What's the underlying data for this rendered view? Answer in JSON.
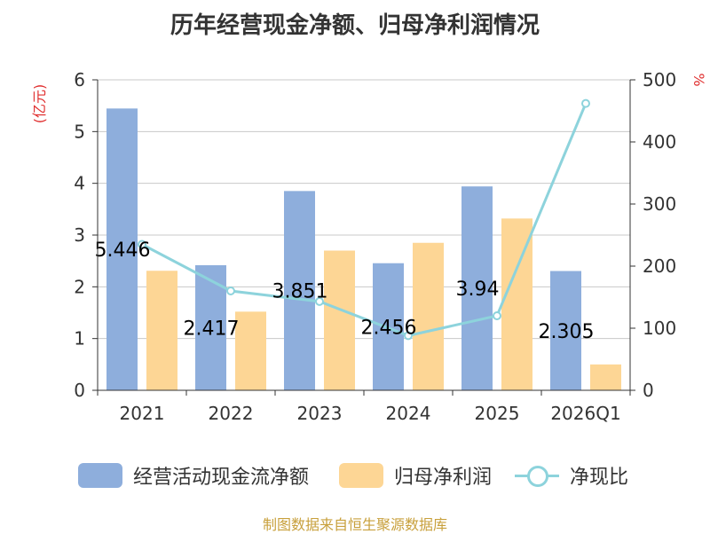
{
  "title": "历年经营现金净额、归母净利润情况",
  "source": "制图数据来自恒生聚源数据库",
  "colors": {
    "cash_flow": "#8eaedc",
    "net_profit": "#fdd695",
    "ratio": "#8dd3dc",
    "axis_title": "#e03030",
    "grid": "#c8c8c8",
    "text": "#333333"
  },
  "chart_data": {
    "type": "bar",
    "title": "历年经营现金净额、归母净利润情况",
    "categories": [
      "2021",
      "2022",
      "2023",
      "2024",
      "2025",
      "2026Q1"
    ],
    "y_left": {
      "label": "(亿元)",
      "min": 0,
      "max": 6,
      "ticks": [
        "0",
        "1",
        "2",
        "3",
        "4",
        "5",
        "6"
      ]
    },
    "y_right": {
      "label": "%",
      "min": 0,
      "max": 500,
      "ticks": [
        "0",
        "100",
        "200",
        "300",
        "400",
        "500"
      ]
    },
    "series": [
      {
        "name": "经营活动现金流净额",
        "type": "bar",
        "axis": "left",
        "values": [
          5.446,
          2.417,
          3.851,
          2.456,
          3.94,
          2.305
        ],
        "labels": [
          "5.446",
          "2.417",
          "3.851",
          "2.456",
          "3.94",
          "2.305"
        ]
      },
      {
        "name": "归母净利润",
        "type": "bar",
        "axis": "left",
        "values": [
          2.31,
          1.52,
          2.7,
          2.85,
          3.32,
          0.5
        ]
      },
      {
        "name": "净现比",
        "type": "line",
        "axis": "right",
        "values": [
          235,
          160,
          143,
          88,
          120,
          462
        ]
      }
    ],
    "legend": [
      "经营活动现金流净额",
      "归母净利润",
      "净现比"
    ],
    "legend_position": "bottom",
    "grid": true
  }
}
